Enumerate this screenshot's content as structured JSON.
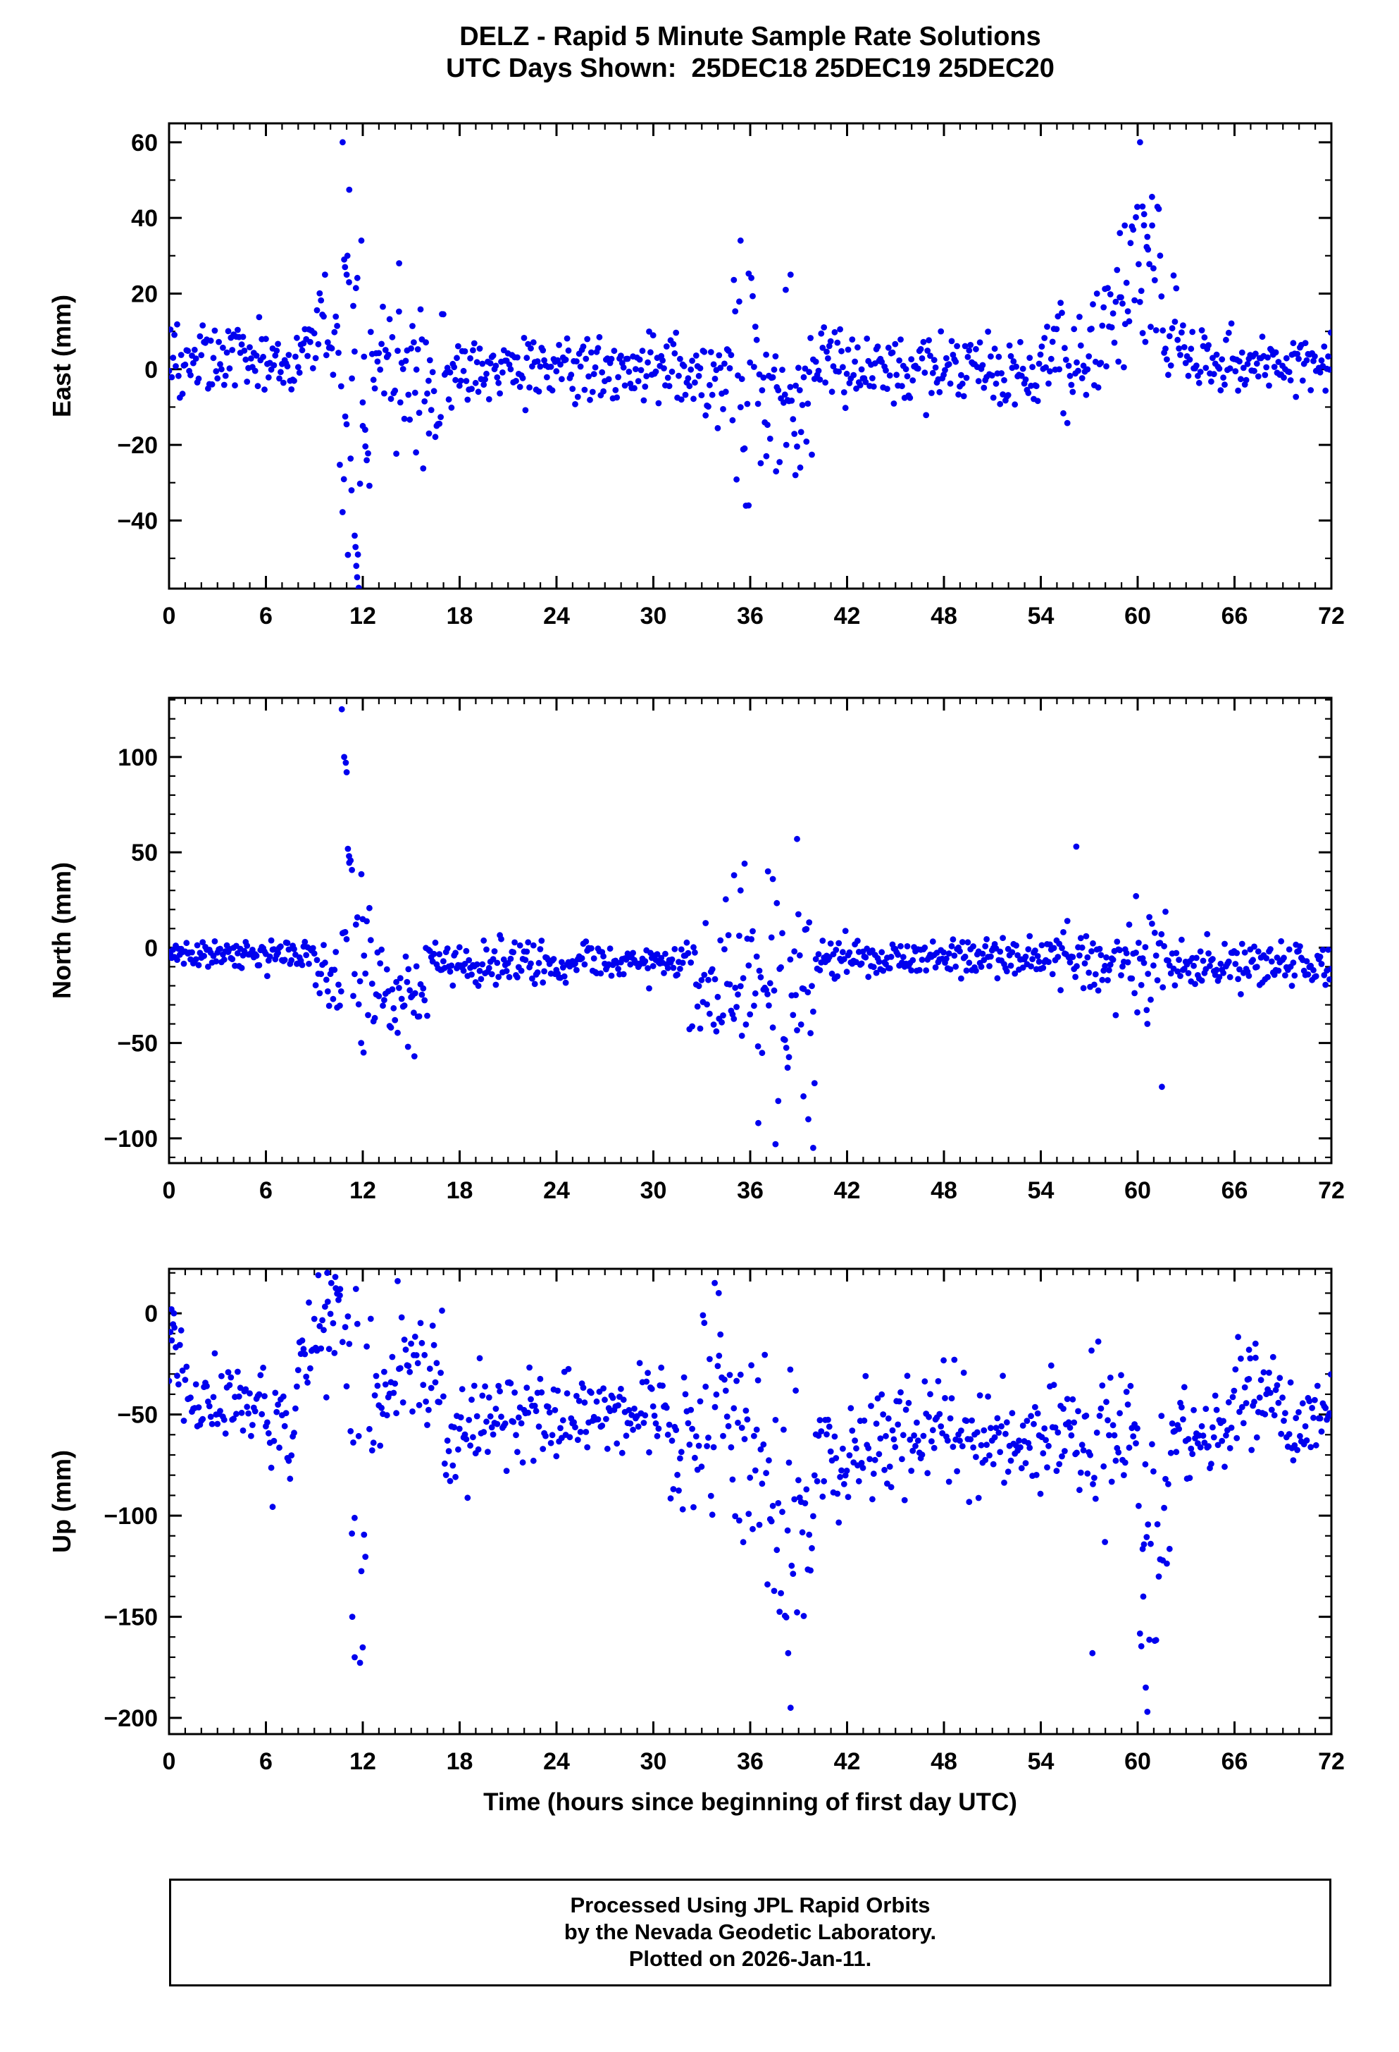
{
  "title": {
    "line1": "DELZ - Rapid 5 Minute Sample Rate Solutions",
    "line2": "UTC Days Shown:  25DEC18 25DEC19 25DEC20"
  },
  "xlabel": "Time (hours since beginning of first day UTC)",
  "footer": {
    "line1": "Processed Using JPL Rapid Orbits",
    "line2": "by the Nevada Geodetic Laboratory.",
    "line3": "Plotted on 2026-Jan-11."
  },
  "colors": {
    "point": "#0000ee",
    "axis": "#000000"
  },
  "chart_data": [
    {
      "type": "scatter",
      "name": "east",
      "ylabel": "East (mm)",
      "station": "DELZ",
      "xlim": [
        0,
        72
      ],
      "xticks": [
        0,
        6,
        12,
        18,
        24,
        30,
        36,
        42,
        48,
        54,
        60,
        66,
        72
      ],
      "x_minor_step": 1,
      "ylim": [
        -58,
        65
      ],
      "yticks": [
        -40,
        -20,
        0,
        20,
        40,
        60
      ],
      "y_minor_step": 10,
      "sample_interval_hours": 0.0833,
      "baseline_segments": [
        [
          0,
          9,
          3,
          4
        ],
        [
          9,
          10.5,
          7,
          7
        ],
        [
          10.5,
          12.5,
          -5,
          22
        ],
        [
          12.5,
          14,
          2,
          6
        ],
        [
          14,
          17,
          -3,
          9
        ],
        [
          17,
          32,
          0,
          4.5
        ],
        [
          32,
          34.5,
          -2,
          7
        ],
        [
          34.5,
          36.5,
          0,
          14
        ],
        [
          36.5,
          40,
          -9,
          9
        ],
        [
          40,
          54,
          0,
          4.5
        ],
        [
          54,
          57,
          3,
          8
        ],
        [
          57,
          59.5,
          14,
          10
        ],
        [
          59.5,
          61.5,
          30,
          12
        ],
        [
          61.5,
          63,
          8,
          6
        ],
        [
          63,
          72,
          2,
          4.5
        ]
      ],
      "outliers": [
        [
          10.75,
          60
        ],
        [
          10.85,
          29
        ],
        [
          10.9,
          27
        ],
        [
          11.0,
          25
        ],
        [
          11.05,
          30
        ],
        [
          11.15,
          23
        ],
        [
          11.3,
          -32
        ],
        [
          11.5,
          -44
        ],
        [
          11.55,
          -47
        ],
        [
          11.6,
          -52
        ],
        [
          11.65,
          -55
        ],
        [
          11.7,
          -49
        ],
        [
          12.0,
          -15
        ],
        [
          12.15,
          -16
        ],
        [
          14.25,
          28
        ],
        [
          15.3,
          -22
        ],
        [
          16.1,
          -17
        ],
        [
          35.4,
          34
        ],
        [
          35.9,
          -36
        ],
        [
          37.0,
          -23
        ],
        [
          37.6,
          -27
        ],
        [
          38.2,
          21
        ],
        [
          38.5,
          25
        ],
        [
          38.8,
          -28
        ],
        [
          39.1,
          -26
        ],
        [
          58.9,
          36
        ],
        [
          59.2,
          38
        ],
        [
          60.15,
          60
        ],
        [
          60.3,
          43
        ],
        [
          60.4,
          41
        ],
        [
          60.6,
          35
        ],
        [
          60.9,
          38
        ]
      ]
    },
    {
      "type": "scatter",
      "name": "north",
      "ylabel": "North (mm)",
      "station": "DELZ",
      "xlim": [
        0,
        72
      ],
      "xticks": [
        0,
        6,
        12,
        18,
        24,
        30,
        36,
        42,
        48,
        54,
        60,
        66,
        72
      ],
      "x_minor_step": 1,
      "ylim": [
        -113,
        131
      ],
      "yticks": [
        -100,
        -50,
        0,
        50,
        100
      ],
      "y_minor_step": 10,
      "sample_interval_hours": 0.0833,
      "baseline_segments": [
        [
          0,
          9,
          -4,
          4
        ],
        [
          9,
          10.5,
          -12,
          9
        ],
        [
          10.5,
          12.5,
          -5,
          25
        ],
        [
          12.5,
          16,
          -25,
          13
        ],
        [
          16,
          32,
          -8,
          5
        ],
        [
          32,
          34,
          -18,
          13
        ],
        [
          34,
          37,
          -15,
          25
        ],
        [
          37,
          40,
          -25,
          28
        ],
        [
          40,
          55,
          -5,
          5
        ],
        [
          55,
          58,
          -6,
          9
        ],
        [
          58,
          62,
          -6,
          13
        ],
        [
          62,
          72,
          -10,
          6
        ]
      ],
      "outliers": [
        [
          10.7,
          125
        ],
        [
          10.85,
          100
        ],
        [
          10.95,
          97
        ],
        [
          11.0,
          92
        ],
        [
          11.15,
          48
        ],
        [
          11.9,
          -50
        ],
        [
          12.05,
          -55
        ],
        [
          14.8,
          -52
        ],
        [
          15.2,
          -57
        ],
        [
          35.0,
          38
        ],
        [
          35.4,
          30
        ],
        [
          36.5,
          -92
        ],
        [
          37.1,
          40
        ],
        [
          37.4,
          36
        ],
        [
          38.9,
          57
        ],
        [
          39.3,
          -78
        ],
        [
          39.6,
          -90
        ],
        [
          39.9,
          -105
        ],
        [
          56.2,
          53
        ],
        [
          59.9,
          27
        ],
        [
          60.6,
          -40
        ],
        [
          61.5,
          -73
        ]
      ]
    },
    {
      "type": "scatter",
      "name": "up",
      "ylabel": "Up (mm)",
      "station": "DELZ",
      "xlim": [
        0,
        72
      ],
      "xticks": [
        0,
        6,
        12,
        18,
        24,
        30,
        36,
        42,
        48,
        54,
        60,
        66,
        72
      ],
      "x_minor_step": 1,
      "ylim": [
        -208,
        22
      ],
      "yticks": [
        -200,
        -150,
        -100,
        -50,
        0
      ],
      "y_minor_step": 10,
      "sample_interval_hours": 0.0833,
      "baseline_segments": [
        [
          0,
          1,
          -25,
          15
        ],
        [
          1,
          6,
          -45,
          10
        ],
        [
          6,
          8,
          -55,
          14
        ],
        [
          8,
          10,
          -25,
          20
        ],
        [
          10,
          11.2,
          5,
          22
        ],
        [
          11.2,
          12.6,
          -70,
          45
        ],
        [
          12.6,
          14,
          -45,
          10
        ],
        [
          14,
          17,
          -28,
          18
        ],
        [
          17,
          19,
          -58,
          12
        ],
        [
          19,
          31,
          -50,
          12
        ],
        [
          31,
          33,
          -65,
          14
        ],
        [
          33,
          35,
          -40,
          28
        ],
        [
          35,
          37,
          -72,
          28
        ],
        [
          37,
          40,
          -105,
          30
        ],
        [
          40,
          42,
          -72,
          14
        ],
        [
          42,
          56,
          -60,
          13
        ],
        [
          56,
          58,
          -68,
          22
        ],
        [
          58,
          60,
          -55,
          15
        ],
        [
          60,
          62,
          -110,
          35
        ],
        [
          62,
          66,
          -60,
          13
        ],
        [
          66,
          69,
          -42,
          15
        ],
        [
          69,
          72,
          -50,
          10
        ]
      ],
      "outliers": [
        [
          0.15,
          2
        ],
        [
          0.3,
          0
        ],
        [
          9.8,
          20
        ],
        [
          10.05,
          15
        ],
        [
          10.3,
          18
        ],
        [
          10.6,
          12
        ],
        [
          11.35,
          -150
        ],
        [
          11.5,
          -170
        ],
        [
          33.8,
          15
        ],
        [
          34.05,
          10
        ],
        [
          38.35,
          -168
        ],
        [
          38.5,
          -195
        ],
        [
          57.2,
          -168
        ],
        [
          60.35,
          -140
        ],
        [
          60.5,
          -185
        ],
        [
          60.6,
          -197
        ],
        [
          66.9,
          -18
        ],
        [
          67.3,
          -15
        ]
      ]
    }
  ]
}
